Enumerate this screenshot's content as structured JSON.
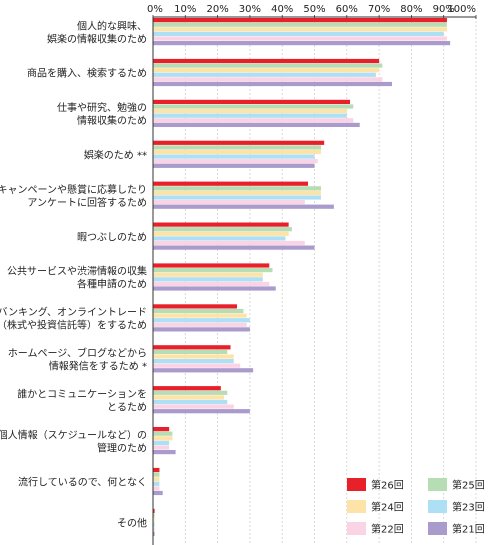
{
  "chart_data": {
    "type": "bar",
    "orientation": "horizontal",
    "title": "",
    "xlabel": "",
    "ylabel": "",
    "xlim": [
      0,
      100
    ],
    "tick_labels": [
      "0%",
      "10%",
      "20%",
      "30%",
      "40%",
      "50%",
      "60%",
      "70%",
      "80%",
      "90%",
      "100%"
    ],
    "grid": true,
    "legend_position": "bottom-right",
    "categories": [
      [
        "個人的な興味、",
        "娯楽の情報収集のため"
      ],
      [
        "商品を購入、検索するため"
      ],
      [
        "仕事や研究、勉強の",
        "情報収集のため"
      ],
      [
        "娯楽のため **"
      ],
      [
        "キャンペーンや懸賞に応募したり",
        "アンケートに回答するため"
      ],
      [
        "暇つぶしのため"
      ],
      [
        "公共サービスや渋滞情報の収集",
        "各種申請のため"
      ],
      [
        "ネットバンキング、オンライントレード",
        "（株式や投資信託等）をするため"
      ],
      [
        "ホームページ、ブログなどから",
        "情報発信をするため *"
      ],
      [
        "誰かとコミュニケーションを",
        "とるため"
      ],
      [
        "個人情報（スケジュールなど）の",
        "管理のため"
      ],
      [
        "流行しているので、何となく"
      ],
      [
        "その他"
      ]
    ],
    "series": [
      {
        "name": "第26回",
        "color": "#e8202a",
        "values": [
          91,
          70,
          61,
          53,
          48,
          42,
          36,
          26,
          24,
          21,
          5,
          2,
          0.5
        ]
      },
      {
        "name": "第25回",
        "color": "#b6ddb3",
        "values": [
          91,
          71,
          62,
          52,
          52,
          43,
          37,
          28,
          23,
          23,
          6,
          2,
          0.5
        ]
      },
      {
        "name": "第24回",
        "color": "#fde3a7",
        "values": [
          91,
          70,
          60,
          52,
          52,
          42,
          34,
          29,
          25,
          22,
          6,
          2,
          0.5
        ]
      },
      {
        "name": "第23回",
        "color": "#aee0f5",
        "values": [
          90,
          69,
          60,
          50,
          52,
          41,
          34,
          30,
          25,
          23,
          5,
          2,
          0.5
        ]
      },
      {
        "name": "第22回",
        "color": "#fad3e4",
        "values": [
          91,
          71,
          62,
          51,
          47,
          47,
          36,
          29,
          27,
          25,
          5,
          2,
          0.5
        ]
      },
      {
        "name": "第21回",
        "color": "#a99bcb",
        "values": [
          92,
          74,
          64,
          50,
          56,
          50,
          38,
          30,
          31,
          30,
          7,
          3,
          0.5
        ]
      }
    ],
    "legend_order": [
      "第26回",
      "第25回",
      "第24回",
      "第23回",
      "第22回",
      "第21回"
    ]
  }
}
